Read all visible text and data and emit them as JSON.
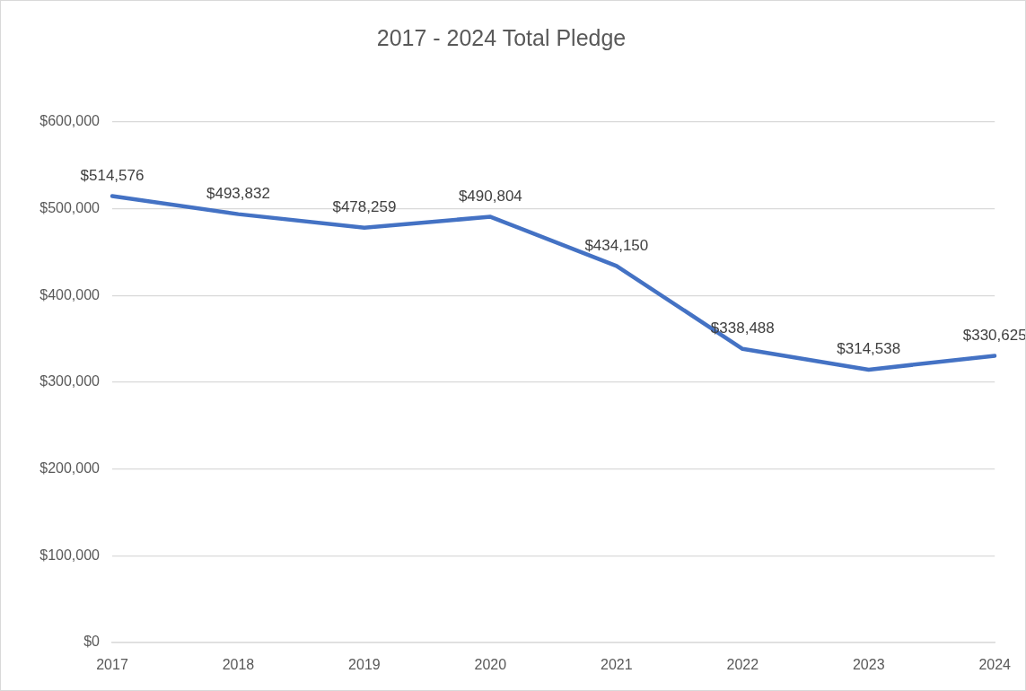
{
  "chart_data": {
    "type": "line",
    "title": "2017 - 2024 Total Pledge",
    "categories": [
      "2017",
      "2018",
      "2019",
      "2020",
      "2021",
      "2022",
      "2023",
      "2024"
    ],
    "series": [
      {
        "color": "#4472c4",
        "values": [
          514576,
          493832,
          478259,
          490804,
          434150,
          338488,
          314538,
          330625
        ],
        "value_labels": [
          "$514,576",
          "$493,832",
          "$478,259",
          "$490,804",
          "$434,150",
          "$338,488",
          "$314,538",
          "$330,625"
        ]
      }
    ],
    "ylim": [
      0,
      600000
    ],
    "yticks": [
      {
        "value": 0,
        "label": "$0"
      },
      {
        "value": 100000,
        "label": "$100,000"
      },
      {
        "value": 200000,
        "label": "$200,000"
      },
      {
        "value": 300000,
        "label": "$300,000"
      },
      {
        "value": 400000,
        "label": "$400,000"
      },
      {
        "value": 500000,
        "label": "$500,000"
      },
      {
        "value": 600000,
        "label": "$600,000"
      }
    ],
    "grid": "y",
    "legend": false,
    "marker": "none",
    "line_style": "solid"
  }
}
